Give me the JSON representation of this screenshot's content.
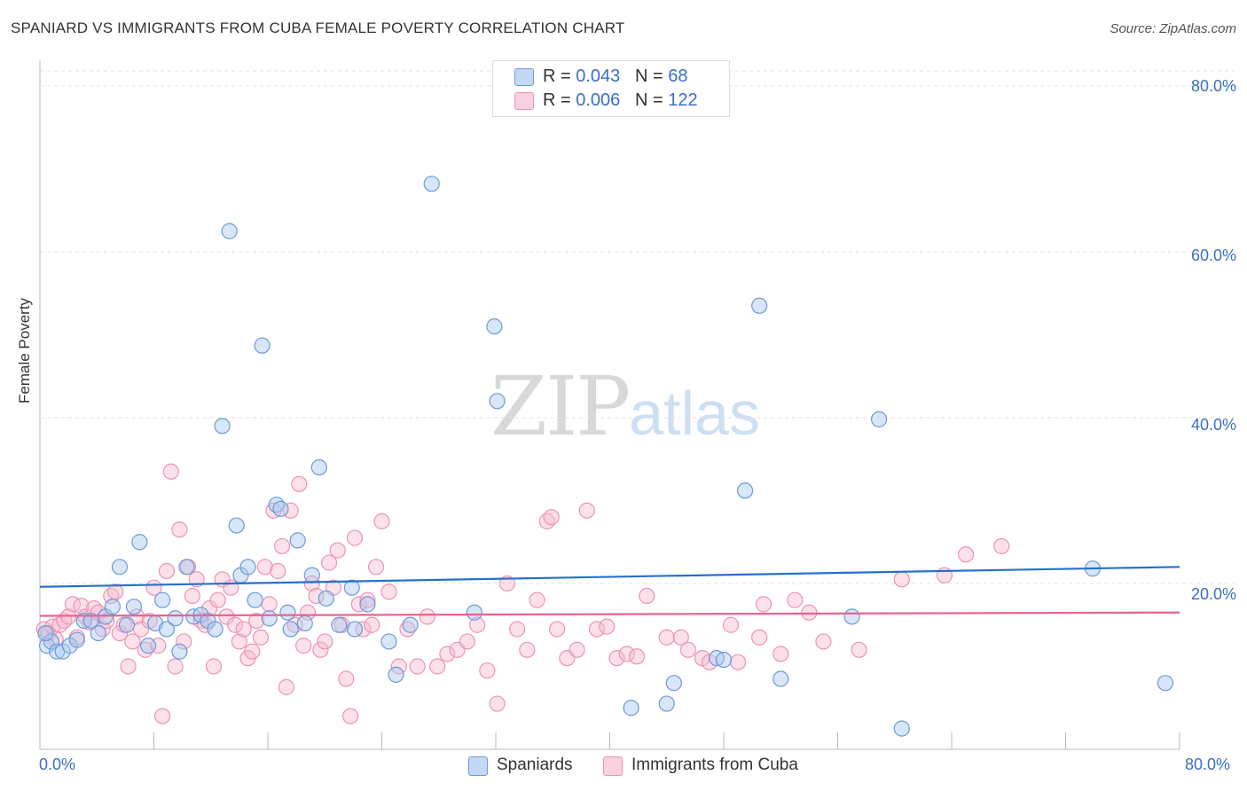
{
  "title": "SPANIARD VS IMMIGRANTS FROM CUBA FEMALE POVERTY CORRELATION CHART",
  "source": "Source: ZipAtlas.com",
  "watermark": {
    "part1": "ZIP",
    "part2": "atlas"
  },
  "legend": {
    "rows": [
      {
        "r_label": "R = ",
        "r_value": "0.043",
        "n_label": "N = ",
        "n_value": " 68"
      },
      {
        "r_label": "R = ",
        "r_value": "0.006",
        "n_label": "N = ",
        "n_value": "122"
      }
    ]
  },
  "bottom_legend": [
    "Spaniards",
    "Immigrants from Cuba"
  ],
  "y_axis_label": "Female Poverty",
  "x_tick_labels": {
    "left": "0.0%",
    "right": "80.0%"
  },
  "y_tick_labels": [
    "80.0%",
    "60.0%",
    "40.0%",
    "20.0%"
  ],
  "colors": {
    "spaniards_fill": "#a9c8f0",
    "spaniards_stroke": "#6c9bd8",
    "spaniards_line": "#2670cf",
    "cuba_fill": "#f8bcd0",
    "cuba_stroke": "#ee93b3",
    "cuba_line": "#e8648e",
    "axis_text": "#3a6fc4"
  },
  "chart_data": {
    "type": "scatter",
    "title": "SPANIARD VS IMMIGRANTS FROM CUBA FEMALE POVERTY CORRELATION CHART",
    "xlabel": "",
    "ylabel": "Female Poverty",
    "xlim": [
      0,
      80
    ],
    "ylim": [
      0,
      80
    ],
    "grid": true,
    "series": [
      {
        "name": "Spaniards",
        "r": 0.043,
        "n": 68,
        "trend": {
          "x": [
            0,
            80
          ],
          "y": [
            19.6,
            22.0
          ]
        },
        "points": [
          [
            0.5,
            12.5
          ],
          [
            0.8,
            13.0
          ],
          [
            1.2,
            11.8
          ],
          [
            1.6,
            11.8
          ],
          [
            2.1,
            12.5
          ],
          [
            2.6,
            13.2
          ],
          [
            3.1,
            15.5
          ],
          [
            3.6,
            15.5
          ],
          [
            4.1,
            14.0
          ],
          [
            4.6,
            16.0
          ],
          [
            5.1,
            17.2
          ],
          [
            5.6,
            22.0
          ],
          [
            6.1,
            15.0
          ],
          [
            6.6,
            17.2
          ],
          [
            7.0,
            25.0
          ],
          [
            7.6,
            12.5
          ],
          [
            8.1,
            15.2
          ],
          [
            8.6,
            18.0
          ],
          [
            8.9,
            14.5
          ],
          [
            9.5,
            15.8
          ],
          [
            9.8,
            11.8
          ],
          [
            10.3,
            22.0
          ],
          [
            10.8,
            16.0
          ],
          [
            11.3,
            16.2
          ],
          [
            11.8,
            15.5
          ],
          [
            12.3,
            14.5
          ],
          [
            12.8,
            39.0
          ],
          [
            13.3,
            62.5
          ],
          [
            13.8,
            27.0
          ],
          [
            14.1,
            21.0
          ],
          [
            14.6,
            22.0
          ],
          [
            15.1,
            18.0
          ],
          [
            15.6,
            48.7
          ],
          [
            16.1,
            15.8
          ],
          [
            16.6,
            29.5
          ],
          [
            16.9,
            29.0
          ],
          [
            17.4,
            16.5
          ],
          [
            17.6,
            14.5
          ],
          [
            18.1,
            25.2
          ],
          [
            18.6,
            15.2
          ],
          [
            19.1,
            21.0
          ],
          [
            19.6,
            34.0
          ],
          [
            20.1,
            18.2
          ],
          [
            21.0,
            15.0
          ],
          [
            21.9,
            19.5
          ],
          [
            22.1,
            14.5
          ],
          [
            23.0,
            17.5
          ],
          [
            24.5,
            13.0
          ],
          [
            25.0,
            9.0
          ],
          [
            26.0,
            15.0
          ],
          [
            27.5,
            68.2
          ],
          [
            30.5,
            16.5
          ],
          [
            31.9,
            51.0
          ],
          [
            32.1,
            42.0
          ],
          [
            41.5,
            5.0
          ],
          [
            44.0,
            5.5
          ],
          [
            44.5,
            8.0
          ],
          [
            47.5,
            11.0
          ],
          [
            48.0,
            10.8
          ],
          [
            49.5,
            31.2
          ],
          [
            50.5,
            53.5
          ],
          [
            52.0,
            8.5
          ],
          [
            57.0,
            16.0
          ],
          [
            58.9,
            39.8
          ],
          [
            60.5,
            2.5
          ],
          [
            73.9,
            21.8
          ],
          [
            79.0,
            8.0
          ],
          [
            0.4,
            14.0
          ]
        ]
      },
      {
        "name": "Immigrants from Cuba",
        "r": 0.006,
        "n": 122,
        "trend": {
          "x": [
            0,
            80
          ],
          "y": [
            16.1,
            16.5
          ]
        },
        "points": [
          [
            0.3,
            14.5
          ],
          [
            0.6,
            14.0
          ],
          [
            0.9,
            14.8
          ],
          [
            1.1,
            13.3
          ],
          [
            1.4,
            15.0
          ],
          [
            1.7,
            15.5
          ],
          [
            2.0,
            16.0
          ],
          [
            2.3,
            17.5
          ],
          [
            2.6,
            13.5
          ],
          [
            2.9,
            17.3
          ],
          [
            3.2,
            16.0
          ],
          [
            3.5,
            15.3
          ],
          [
            3.8,
            17.0
          ],
          [
            4.1,
            16.5
          ],
          [
            4.4,
            14.5
          ],
          [
            4.7,
            15.5
          ],
          [
            5.0,
            18.5
          ],
          [
            5.3,
            19.0
          ],
          [
            5.6,
            14.0
          ],
          [
            5.9,
            15.0
          ],
          [
            6.2,
            10.0
          ],
          [
            6.5,
            13.0
          ],
          [
            6.8,
            16.0
          ],
          [
            7.1,
            14.5
          ],
          [
            7.4,
            12.0
          ],
          [
            7.7,
            15.5
          ],
          [
            8.0,
            19.5
          ],
          [
            8.3,
            12.5
          ],
          [
            8.6,
            4.0
          ],
          [
            8.9,
            21.5
          ],
          [
            9.2,
            33.5
          ],
          [
            9.5,
            10.0
          ],
          [
            9.8,
            26.5
          ],
          [
            10.1,
            13.0
          ],
          [
            10.4,
            22.0
          ],
          [
            10.7,
            18.5
          ],
          [
            11.0,
            20.5
          ],
          [
            11.3,
            15.5
          ],
          [
            11.6,
            15.0
          ],
          [
            11.9,
            17.0
          ],
          [
            12.2,
            10.0
          ],
          [
            12.5,
            18.0
          ],
          [
            12.8,
            20.5
          ],
          [
            13.1,
            16.0
          ],
          [
            13.4,
            19.5
          ],
          [
            13.7,
            15.0
          ],
          [
            14.0,
            13.0
          ],
          [
            14.3,
            14.5
          ],
          [
            14.6,
            11.0
          ],
          [
            14.9,
            11.8
          ],
          [
            15.2,
            15.5
          ],
          [
            15.5,
            13.5
          ],
          [
            15.8,
            22.0
          ],
          [
            16.1,
            17.5
          ],
          [
            16.4,
            28.8
          ],
          [
            16.7,
            21.5
          ],
          [
            17.0,
            24.5
          ],
          [
            17.3,
            7.5
          ],
          [
            17.6,
            28.8
          ],
          [
            17.9,
            15.0
          ],
          [
            18.2,
            32.0
          ],
          [
            18.5,
            12.5
          ],
          [
            18.8,
            16.5
          ],
          [
            19.1,
            20.0
          ],
          [
            19.4,
            18.5
          ],
          [
            19.7,
            12.0
          ],
          [
            20.0,
            13.0
          ],
          [
            20.3,
            22.5
          ],
          [
            20.6,
            19.5
          ],
          [
            20.9,
            24.0
          ],
          [
            21.2,
            15.0
          ],
          [
            21.5,
            8.5
          ],
          [
            21.8,
            4.0
          ],
          [
            22.1,
            25.5
          ],
          [
            22.4,
            17.5
          ],
          [
            22.7,
            14.5
          ],
          [
            23.0,
            18.0
          ],
          [
            23.3,
            15.0
          ],
          [
            23.6,
            22.0
          ],
          [
            24.0,
            27.5
          ],
          [
            24.5,
            19.0
          ],
          [
            25.2,
            10.0
          ],
          [
            25.8,
            14.5
          ],
          [
            26.5,
            10.0
          ],
          [
            27.2,
            16.0
          ],
          [
            27.9,
            10.0
          ],
          [
            28.6,
            11.5
          ],
          [
            29.3,
            12.0
          ],
          [
            30.0,
            13.0
          ],
          [
            30.7,
            15.0
          ],
          [
            31.4,
            9.5
          ],
          [
            32.1,
            5.5
          ],
          [
            32.8,
            20.0
          ],
          [
            33.5,
            14.5
          ],
          [
            34.2,
            12.0
          ],
          [
            34.9,
            18.0
          ],
          [
            35.6,
            27.5
          ],
          [
            35.9,
            28.0
          ],
          [
            36.3,
            14.5
          ],
          [
            37.0,
            11.0
          ],
          [
            37.7,
            12.0
          ],
          [
            38.4,
            28.8
          ],
          [
            39.1,
            14.5
          ],
          [
            39.8,
            14.8
          ],
          [
            40.5,
            11.0
          ],
          [
            41.2,
            11.5
          ],
          [
            41.9,
            11.2
          ],
          [
            42.6,
            18.5
          ],
          [
            44.0,
            13.5
          ],
          [
            45.0,
            13.5
          ],
          [
            45.5,
            12.0
          ],
          [
            46.5,
            11.0
          ],
          [
            47.0,
            10.5
          ],
          [
            48.5,
            15.0
          ],
          [
            49.0,
            10.5
          ],
          [
            50.5,
            13.5
          ],
          [
            50.8,
            17.5
          ],
          [
            52.0,
            11.5
          ],
          [
            53.0,
            18.0
          ],
          [
            54.0,
            16.5
          ],
          [
            55.0,
            13.0
          ],
          [
            57.5,
            12.0
          ],
          [
            60.5,
            20.5
          ],
          [
            63.5,
            21.0
          ],
          [
            65.0,
            23.5
          ],
          [
            67.5,
            24.5
          ]
        ]
      }
    ]
  }
}
